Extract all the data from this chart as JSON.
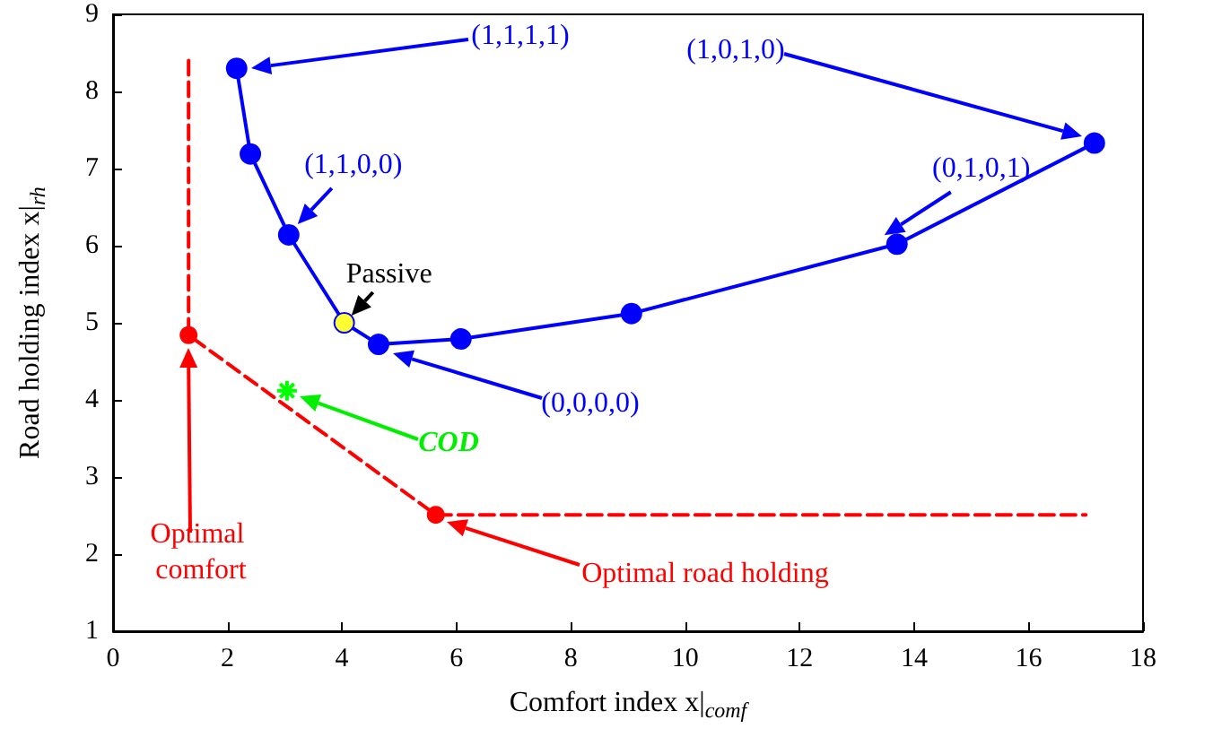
{
  "chart_data": {
    "type": "line",
    "xlabel": "Comfort index x|$_{comf}$",
    "ylabel": "Road holding index x|$_{rh}$",
    "xlim": [
      0,
      18
    ],
    "xticks": [
      0,
      2,
      4,
      6,
      8,
      10,
      12,
      14,
      16,
      18
    ],
    "ylim": [
      1,
      9
    ],
    "yticks": [
      1,
      2,
      3,
      4,
      5,
      6,
      7,
      8,
      9
    ],
    "grid": false,
    "series": [
      {
        "color": "#0000ff",
        "marker": "circle",
        "line_style": "solid",
        "x": [
          2.16,
          2.4,
          3.07,
          4.04,
          4.64,
          6.08,
          9.06,
          13.7,
          17.15
        ],
        "values": [
          8.3,
          7.19,
          6.14,
          5.0,
          4.72,
          4.79,
          5.12,
          6.02,
          7.33
        ]
      },
      {
        "color": "#ff0000",
        "marker": "none",
        "line_style": "dashed",
        "x": [
          1.32,
          1.32,
          5.64,
          17.0
        ],
        "values": [
          8.4,
          4.84,
          2.51,
          2.51
        ]
      },
      {
        "type": "scatter",
        "color": "#ff0000",
        "marker": "circle",
        "x": [
          1.32,
          5.64
        ],
        "values": [
          4.84,
          2.51
        ]
      },
      {
        "type": "scatter",
        "color": "#ffff33",
        "marker": "circle",
        "x": [
          4.04
        ],
        "values": [
          5.0
        ]
      },
      {
        "type": "scatter",
        "color": "#00ff00",
        "marker": "cross",
        "x": [
          3.04
        ],
        "values": [
          4.12
        ]
      }
    ],
    "annotations": [
      "(1,1,1,1)",
      {
        "text": "(1,1,0,0)",
        "x": 3.07,
        "y": 6.14
      },
      {
        "text": "Passive",
        "x": 4.04,
        "y": 5.0
      },
      "(0,0,0,0)",
      {
        "text": "(0,1,0,1)",
        "x": 13.7,
        "y": 6.02
      },
      "(1,0,1,0)",
      "COD",
      "Optimal comfort",
      "Optimal road holding"
    ]
  }
}
